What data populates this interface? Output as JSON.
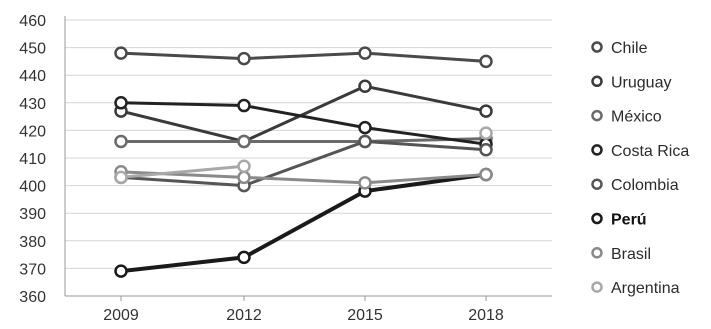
{
  "chart_data": {
    "type": "line",
    "x": [
      "2009",
      "2012",
      "2015",
      "2018"
    ],
    "ylim": [
      360,
      460
    ],
    "yticks": [
      460,
      450,
      440,
      430,
      420,
      410,
      400,
      390,
      380,
      370,
      360
    ],
    "grid": true,
    "legend_position": "right",
    "series": [
      {
        "name": "Chile",
        "values": [
          448,
          446,
          448,
          445
        ],
        "color": "#4a4a4a",
        "bold": false
      },
      {
        "name": "Uruguay",
        "values": [
          427,
          416,
          436,
          427
        ],
        "color": "#3a3a3a",
        "bold": false
      },
      {
        "name": "México",
        "values": [
          416,
          416,
          416,
          417
        ],
        "color": "#6a6a6a",
        "bold": false
      },
      {
        "name": "Costa Rica",
        "values": [
          430,
          429,
          421,
          415
        ],
        "color": "#222222",
        "bold": false
      },
      {
        "name": "Colombia",
        "values": [
          403,
          400,
          416,
          413
        ],
        "color": "#555555",
        "bold": false
      },
      {
        "name": "Perú",
        "values": [
          369,
          374,
          398,
          404
        ],
        "color": "#1a1a1a",
        "bold": true
      },
      {
        "name": "Brasil",
        "values": [
          405,
          403,
          401,
          404
        ],
        "color": "#8a8a8a",
        "bold": false
      },
      {
        "name": "Argentina",
        "values": [
          403,
          407,
          null,
          419
        ],
        "color": "#a8a8a8",
        "bold": false
      }
    ]
  }
}
